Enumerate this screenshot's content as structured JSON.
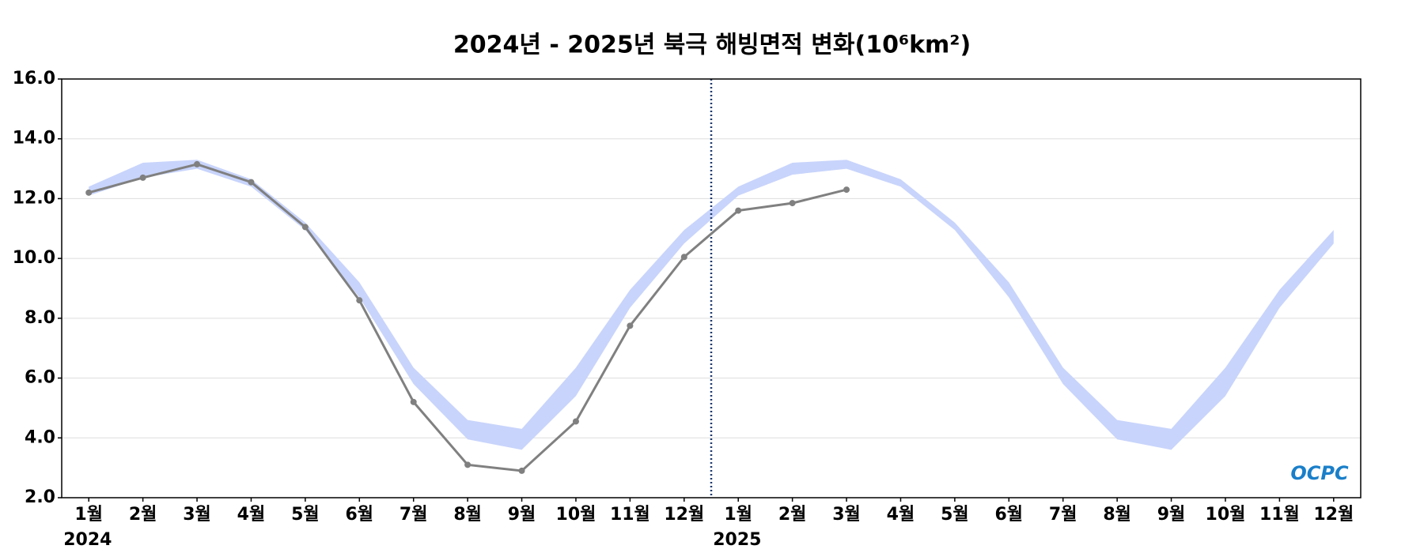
{
  "chart_data": {
    "type": "line",
    "title": "2024년 - 2025년 북극 해빙면적 변화(10⁶km²)",
    "categories": [
      "1월",
      "2월",
      "3월",
      "4월",
      "5월",
      "6월",
      "7월",
      "8월",
      "9월",
      "10월",
      "11월",
      "12월",
      "1월",
      "2월",
      "3월",
      "4월",
      "5월",
      "6월",
      "7월",
      "8월",
      "9월",
      "10월",
      "11월",
      "12월"
    ],
    "years": [
      "2024",
      "2025"
    ],
    "values": [
      12.2,
      12.7,
      13.15,
      12.55,
      11.05,
      8.6,
      5.2,
      3.1,
      2.9,
      4.55,
      7.75,
      10.05,
      11.6,
      11.85,
      12.3,
      null,
      null,
      null,
      null,
      null,
      null,
      null,
      null,
      null
    ],
    "color": "#808080",
    "band": {
      "color": "#c8d4fb",
      "lower": [
        12.1,
        12.7,
        13.0,
        12.4,
        10.95,
        8.7,
        5.8,
        3.95,
        3.6,
        5.4,
        8.35,
        10.5,
        12.1,
        12.8,
        13.0,
        12.4,
        10.95,
        8.7,
        5.8,
        3.95,
        3.6,
        5.4,
        8.35,
        10.5
      ],
      "upper": [
        12.4,
        13.2,
        13.3,
        12.65,
        11.2,
        9.2,
        6.35,
        4.6,
        4.3,
        6.35,
        8.95,
        10.95,
        12.4,
        13.2,
        13.3,
        12.65,
        11.2,
        9.2,
        6.35,
        4.6,
        4.3,
        6.35,
        8.95,
        10.95
      ]
    },
    "ylim": [
      2,
      16
    ],
    "yticks": [
      {
        "value": 2,
        "label": "2.0"
      },
      {
        "value": 4,
        "label": "4.0"
      },
      {
        "value": 6,
        "label": "6.0"
      },
      {
        "value": 8,
        "label": "8.0"
      },
      {
        "value": 10,
        "label": "10.0"
      },
      {
        "value": 12,
        "label": "12.0"
      },
      {
        "value": 14,
        "label": "14.0"
      },
      {
        "value": 16,
        "label": "16.0"
      }
    ],
    "grid": true,
    "logo": "OCPC"
  }
}
